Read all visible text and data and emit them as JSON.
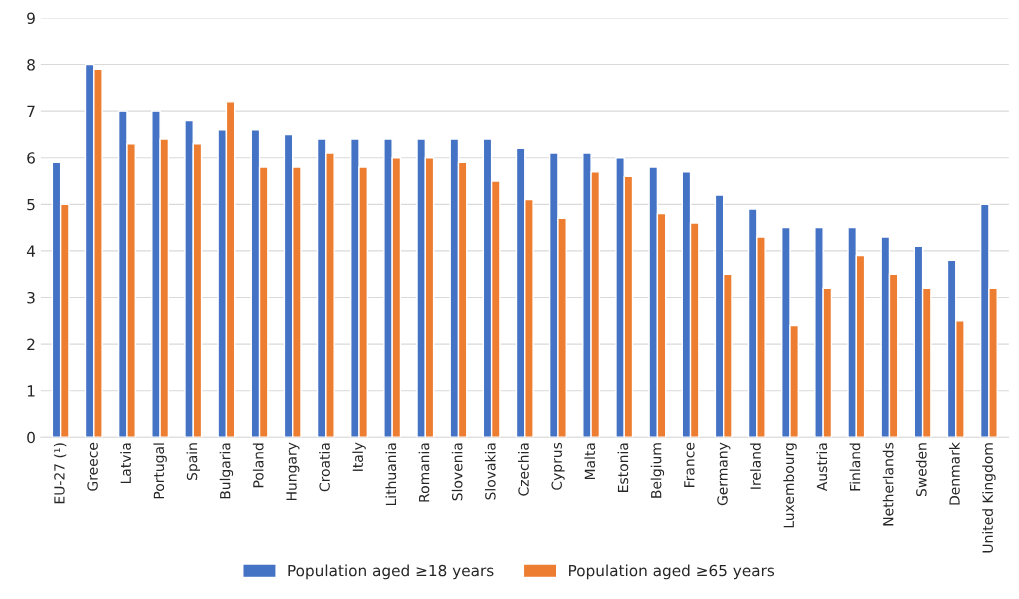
{
  "chart_data": {
    "type": "bar",
    "categories": [
      "EU-27 (¹)",
      "Greece",
      "Latvia",
      "Portugal",
      "Spain",
      "Bulgaria",
      "Poland",
      "Hungary",
      "Croatia",
      "Italy",
      "Lithuania",
      "Romania",
      "Slovenia",
      "Slovakia",
      "Czechia",
      "Cyprus",
      "Malta",
      "Estonia",
      "Belgium",
      "France",
      "Germany",
      "Ireland",
      "Luxembourg",
      "Austria",
      "Finland",
      "Netherlands",
      "Sweden",
      "Denmark",
      "United Kingdom"
    ],
    "series": [
      {
        "name": "Population aged ≥18 years",
        "color": "#4472c4",
        "values": [
          5.9,
          8.0,
          7.0,
          7.0,
          6.8,
          6.6,
          6.6,
          6.5,
          6.4,
          6.4,
          6.4,
          6.4,
          6.4,
          6.4,
          6.2,
          6.1,
          6.1,
          6.0,
          5.8,
          5.7,
          5.2,
          4.9,
          4.5,
          4.5,
          4.5,
          4.3,
          4.1,
          3.8,
          5.0
        ]
      },
      {
        "name": "Population aged ≥65 years",
        "color": "#ed7d31",
        "values": [
          5.0,
          7.9,
          6.3,
          6.4,
          6.3,
          7.2,
          5.8,
          5.8,
          6.1,
          5.8,
          6.0,
          6.0,
          5.9,
          5.5,
          5.1,
          4.7,
          5.7,
          5.6,
          4.8,
          4.6,
          3.5,
          4.3,
          2.4,
          3.2,
          3.9,
          3.5,
          3.2,
          2.5,
          3.2
        ]
      }
    ],
    "ylim": [
      0,
      9
    ],
    "yticks": [
      0,
      1,
      2,
      3,
      4,
      5,
      6,
      7,
      8,
      9
    ],
    "grid": "y",
    "legend": "bottom"
  }
}
